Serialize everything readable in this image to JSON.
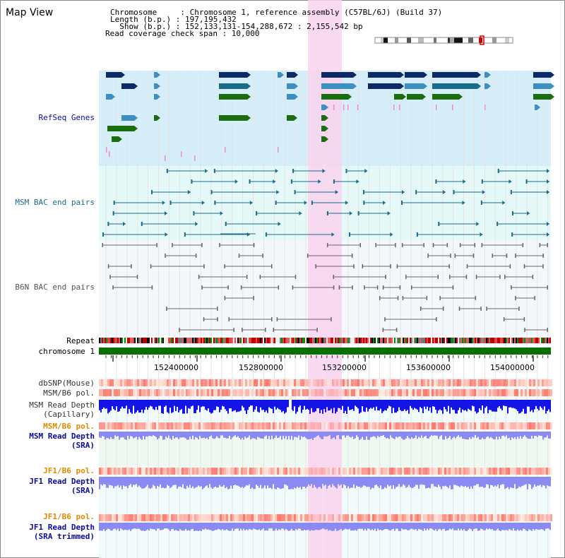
{
  "header": {
    "title": "Map View",
    "line1": "Chromosome     : Chromosome 1, reference assembly (C57BL/6J) (Build 37)",
    "line2": "Length (b.p.) : 197,195,432",
    "line3": "  Show (b.p.) : 152,133,131-154,288,672 : 2,155,542 bp",
    "line4": "Read coverage check span : 10,000"
  },
  "tracks": {
    "refseq": "RefSeq Genes",
    "msm_bac": "MSM BAC end pairs",
    "b6n_bac": "B6N BAC end pairs",
    "repeat": "Repeat",
    "chromosome": "chromosome 1",
    "dbsnp": "dbSNP(Mouse)",
    "msm_pol": "MSM/B6 pol.",
    "msm_depth_cap_1": "MSM Read Depth",
    "msm_depth_cap_2": "(Capillary)",
    "msm_pol_sra": "MSM/B6 pol.",
    "msm_depth_sra_1": "MSM Read Depth",
    "msm_depth_sra_2": "(SRA)",
    "jf1_pol": "JF1/B6 pol.",
    "jf1_depth_1": "JF1 Read Depth",
    "jf1_depth_2": "(SRA)",
    "jf1_pol_t": "JF1/B6 pol.",
    "jf1_depth_t_1": "JF1 Read Depth",
    "jf1_depth_t_2": "(SRA trimmed)"
  },
  "axis": {
    "ticks": [
      "152400000",
      "152800000",
      "153200000",
      "153600000",
      "154000000"
    ]
  },
  "colors": {
    "refseq_bg": "#d6eef9",
    "bac_bg": "#e6f9f9",
    "b6n_bg": "#f4f7fb",
    "highlight": "#f9d4ef",
    "gene_dark": "#0b2a66",
    "gene_mid": "#3c8fbf",
    "gene_green": "#1b6e0f",
    "msm_line": "#1a6c8a",
    "b6n_line": "#666666",
    "chrom_green": "#076e00",
    "depth_blue": "#1414e6",
    "depth_light": "#8a8af2",
    "label_blue": "#0a0aa0",
    "label_orange": "#e08a00",
    "label_teal": "#1a6c8a"
  }
}
